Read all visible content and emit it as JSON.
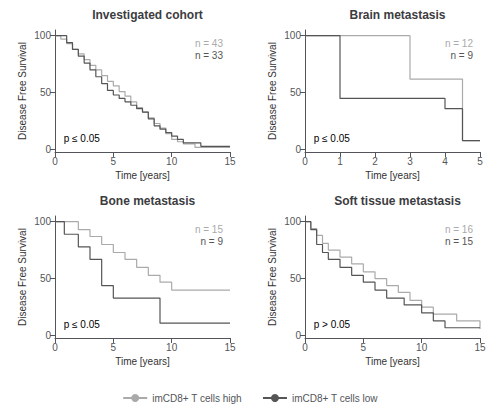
{
  "chart_data": [
    {
      "type": "step",
      "title": "Investigated cohort",
      "xlabel": "Time [years]",
      "ylabel": "Disease Free Survival",
      "xlim": [
        0,
        15
      ],
      "xticks": [
        0,
        5,
        10,
        15
      ],
      "ylim": [
        -2,
        105
      ],
      "yticks": [
        0,
        50,
        100
      ],
      "grid": false,
      "legend": "bottom",
      "annotations": [
        {
          "text": "p ≤ 0.05"
        },
        {
          "text": "n = 43",
          "color": "#aaaaaa"
        },
        {
          "text": "n = 33",
          "color": "#555555"
        }
      ],
      "series": [
        {
          "name": "imCD8+ T cells high",
          "color": "#aaaaaa",
          "x": [
            0,
            0.5,
            1.0,
            1.5,
            2.0,
            2.5,
            3.0,
            3.5,
            4.0,
            4.5,
            5.0,
            5.5,
            6.0,
            6.5,
            7.0,
            7.5,
            8.0,
            8.5,
            9.0,
            9.5,
            10.0,
            10.5,
            11.0,
            11.5,
            12.0,
            12.5,
            13.0,
            14.0,
            15.0
          ],
          "values": [
            100,
            97,
            93,
            88,
            84,
            79,
            74,
            70,
            65,
            60,
            56,
            51,
            47,
            42,
            37,
            33,
            28,
            23,
            19,
            14,
            9,
            7,
            5,
            5,
            2,
            2,
            2,
            2,
            2
          ]
        },
        {
          "name": "imCD8+ T cells low",
          "color": "#555555",
          "x": [
            0,
            1.0,
            1.5,
            2.0,
            2.5,
            3.0,
            3.5,
            4.0,
            4.5,
            5.0,
            5.5,
            6.0,
            6.5,
            7.0,
            7.5,
            8.0,
            8.5,
            9.0,
            9.5,
            10.0,
            10.5,
            11.0,
            11.5,
            12.0,
            12.5,
            13.0,
            14.0,
            15.0
          ],
          "values": [
            100,
            94,
            88,
            82,
            76,
            70,
            64,
            58,
            52,
            48,
            45,
            42,
            39,
            36,
            33,
            27,
            21,
            18,
            15,
            12,
            9,
            6,
            6,
            6,
            3,
            3,
            3,
            3
          ]
        }
      ]
    },
    {
      "type": "step",
      "title": "Brain metastasis",
      "xlabel": "Time [years]",
      "ylabel": "Disease Free Survival",
      "xlim": [
        0,
        5
      ],
      "xticks": [
        0,
        1,
        2,
        3,
        4,
        5
      ],
      "ylim": [
        -2,
        105
      ],
      "yticks": [
        0,
        50,
        100
      ],
      "grid": false,
      "legend": "bottom",
      "annotations": [
        {
          "text": "p ≤ 0.05"
        },
        {
          "text": "n = 12",
          "color": "#aaaaaa"
        },
        {
          "text": "n = 9",
          "color": "#555555"
        }
      ],
      "series": [
        {
          "name": "imCD8+ T cells high",
          "color": "#aaaaaa",
          "x": [
            0,
            2.0,
            3.0,
            4.0,
            4.5,
            5.0
          ],
          "values": [
            100,
            100,
            62,
            62,
            8,
            8
          ]
        },
        {
          "name": "imCD8+ T cells low",
          "color": "#555555",
          "x": [
            0,
            1.0,
            2.0,
            3.0,
            4.0,
            4.5,
            5.0
          ],
          "values": [
            100,
            45,
            45,
            45,
            36,
            8,
            8
          ]
        }
      ]
    },
    {
      "type": "step",
      "title": "Bone metastasis",
      "xlabel": "Time [years]",
      "ylabel": "Disease Free Survival",
      "xlim": [
        0,
        15
      ],
      "xticks": [
        0,
        5,
        10,
        15
      ],
      "ylim": [
        -2,
        105
      ],
      "yticks": [
        0,
        50,
        100
      ],
      "grid": false,
      "legend": "bottom",
      "annotations": [
        {
          "text": "p ≤ 0.05"
        },
        {
          "text": "n = 15",
          "color": "#aaaaaa"
        },
        {
          "text": "n = 9",
          "color": "#555555"
        }
      ],
      "series": [
        {
          "name": "imCD8+ T cells high",
          "color": "#aaaaaa",
          "x": [
            0,
            1.0,
            2.0,
            3.0,
            4.0,
            5.0,
            6.0,
            7.0,
            8.0,
            9.0,
            10.0,
            11.0,
            12.0,
            13.0,
            15.0
          ],
          "values": [
            100,
            100,
            93,
            87,
            80,
            73,
            67,
            60,
            53,
            47,
            40,
            40,
            40,
            40,
            40
          ]
        },
        {
          "name": "imCD8+ T cells low",
          "color": "#555555",
          "x": [
            0,
            0.8,
            2.0,
            3.0,
            4.0,
            5.0,
            6.0,
            9.0,
            10.0,
            13.0,
            15.0
          ],
          "values": [
            100,
            89,
            78,
            67,
            44,
            33,
            33,
            11,
            11,
            11,
            11
          ]
        }
      ]
    },
    {
      "type": "step",
      "title": "Soft tissue metastasis",
      "xlabel": "Time [years]",
      "ylabel": "Disease Free Survival",
      "xlim": [
        0,
        15
      ],
      "xticks": [
        0,
        5,
        10,
        15
      ],
      "ylim": [
        -2,
        105
      ],
      "yticks": [
        0,
        50,
        100
      ],
      "grid": false,
      "legend": "bottom",
      "annotations": [
        {
          "text": "p > 0.05"
        },
        {
          "text": "n = 16",
          "color": "#aaaaaa"
        },
        {
          "text": "n = 15",
          "color": "#555555"
        }
      ],
      "series": [
        {
          "name": "imCD8+ T cells high",
          "color": "#aaaaaa",
          "x": [
            0,
            0.5,
            1.0,
            1.5,
            2.0,
            3.0,
            4.0,
            5.0,
            6.0,
            7.0,
            8.0,
            9.0,
            10.0,
            11.0,
            12.0,
            13.0,
            14.0,
            15.0
          ],
          "values": [
            100,
            94,
            88,
            81,
            75,
            69,
            63,
            56,
            50,
            44,
            38,
            31,
            25,
            19,
            19,
            13,
            13,
            6
          ]
        },
        {
          "name": "imCD8+ T cells low",
          "color": "#555555",
          "x": [
            0,
            0.5,
            1.0,
            1.5,
            2.0,
            3.0,
            4.0,
            5.0,
            6.0,
            7.0,
            8.5,
            9.0,
            10.0,
            11.0,
            12.0,
            13.0,
            14.0,
            15.0
          ],
          "values": [
            100,
            93,
            80,
            73,
            67,
            60,
            53,
            47,
            40,
            33,
            27,
            27,
            20,
            13,
            7,
            7,
            7,
            7
          ]
        }
      ]
    }
  ]
}
